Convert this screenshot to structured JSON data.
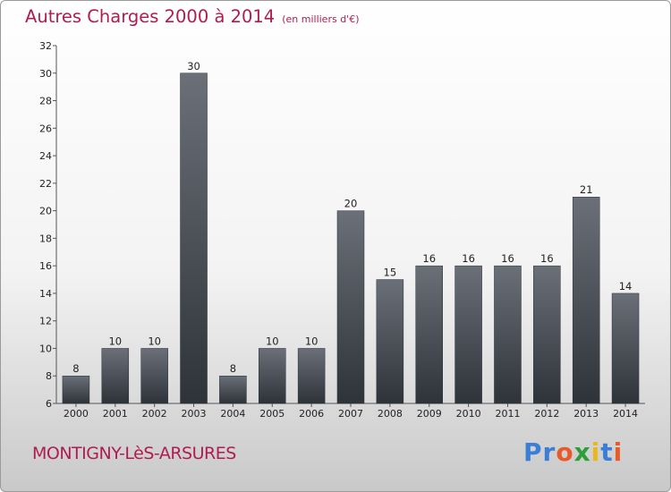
{
  "header": {
    "title": "Autres Charges 2000 à 2014",
    "subtitle": "(en milliers d'€)"
  },
  "footer": {
    "city": "MONTIGNY-LèS-ARSURES",
    "brand_letters": [
      {
        "ch": "P",
        "color": "#3a7fd5"
      },
      {
        "ch": "r",
        "color": "#3a7fd5"
      },
      {
        "ch": "o",
        "color": "#e85a2a"
      },
      {
        "ch": "x",
        "color": "#2e9e3a"
      },
      {
        "ch": "i",
        "color": "#e8b81a"
      },
      {
        "ch": "t",
        "color": "#3a7fd5"
      },
      {
        "ch": "i",
        "color": "#e85a2a"
      }
    ]
  },
  "colors": {
    "accent": "#b01c52",
    "bar_top": "#6b7078",
    "bar_bottom": "#2e333a"
  },
  "chart_data": {
    "type": "bar",
    "title": "Autres Charges 2000 à 2014",
    "subtitle": "(en milliers d'€)",
    "categories": [
      "2000",
      "2001",
      "2002",
      "2003",
      "2004",
      "2005",
      "2006",
      "2007",
      "2008",
      "2009",
      "2010",
      "2011",
      "2012",
      "2013",
      "2014"
    ],
    "values": [
      8,
      10,
      10,
      30,
      8,
      10,
      10,
      20,
      15,
      16,
      16,
      16,
      16,
      21,
      14
    ],
    "ylim": [
      6,
      32
    ],
    "yticks": [
      6,
      8,
      10,
      12,
      14,
      16,
      18,
      20,
      22,
      24,
      26,
      28,
      30,
      32
    ],
    "grid": false,
    "data_labels": true
  }
}
